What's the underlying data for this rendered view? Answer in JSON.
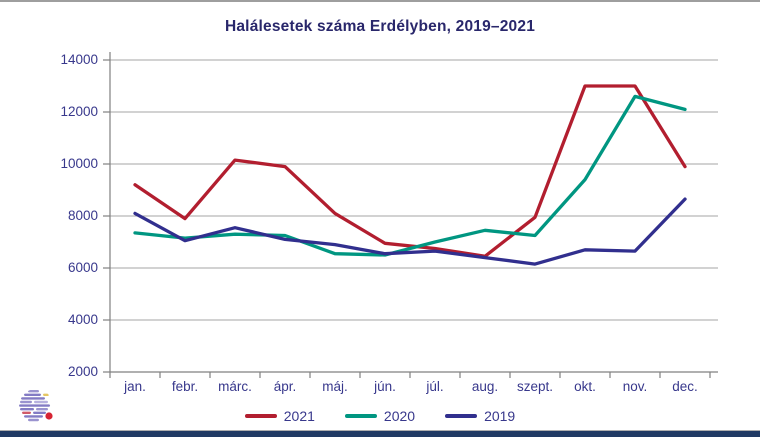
{
  "title": "Halálesetek száma Erdélyben, 2019–2021",
  "colors": {
    "title_text": "#29276b",
    "axis_text": "#38388c",
    "grid": "#a6a6a6",
    "axis": "#808080",
    "series_2021": "#b21e2f",
    "series_2020": "#009681",
    "series_2019": "#312f8e",
    "bottom_bar": "#203a64"
  },
  "chart_data": {
    "type": "line",
    "title": "Halálesetek száma Erdélyben, 2019–2021",
    "categories": [
      "jan.",
      "febr.",
      "márc.",
      "ápr.",
      "máj.",
      "jún.",
      "júl.",
      "aug.",
      "szept.",
      "okt.",
      "nov.",
      "dec."
    ],
    "series": [
      {
        "name": "2021",
        "color": "#b21e2f",
        "values": [
          9200,
          7900,
          10150,
          9900,
          8100,
          6950,
          6750,
          6450,
          7950,
          13000,
          13000,
          9900
        ]
      },
      {
        "name": "2020",
        "color": "#009681",
        "values": [
          7350,
          7150,
          7300,
          7250,
          6550,
          6500,
          7000,
          7450,
          7250,
          9400,
          12600,
          12100
        ]
      },
      {
        "name": "2019",
        "color": "#312f8e",
        "values": [
          8100,
          7050,
          7550,
          7100,
          6900,
          6550,
          6650,
          6400,
          6150,
          6700,
          6650,
          8650
        ]
      }
    ],
    "xlabel": "",
    "ylabel": "",
    "ylim": [
      2000,
      14000
    ],
    "yticks": [
      2000,
      4000,
      6000,
      8000,
      10000,
      12000,
      14000
    ],
    "grid": true,
    "legend_position": "bottom",
    "legend_entries": [
      "2021",
      "2020",
      "2019"
    ]
  }
}
